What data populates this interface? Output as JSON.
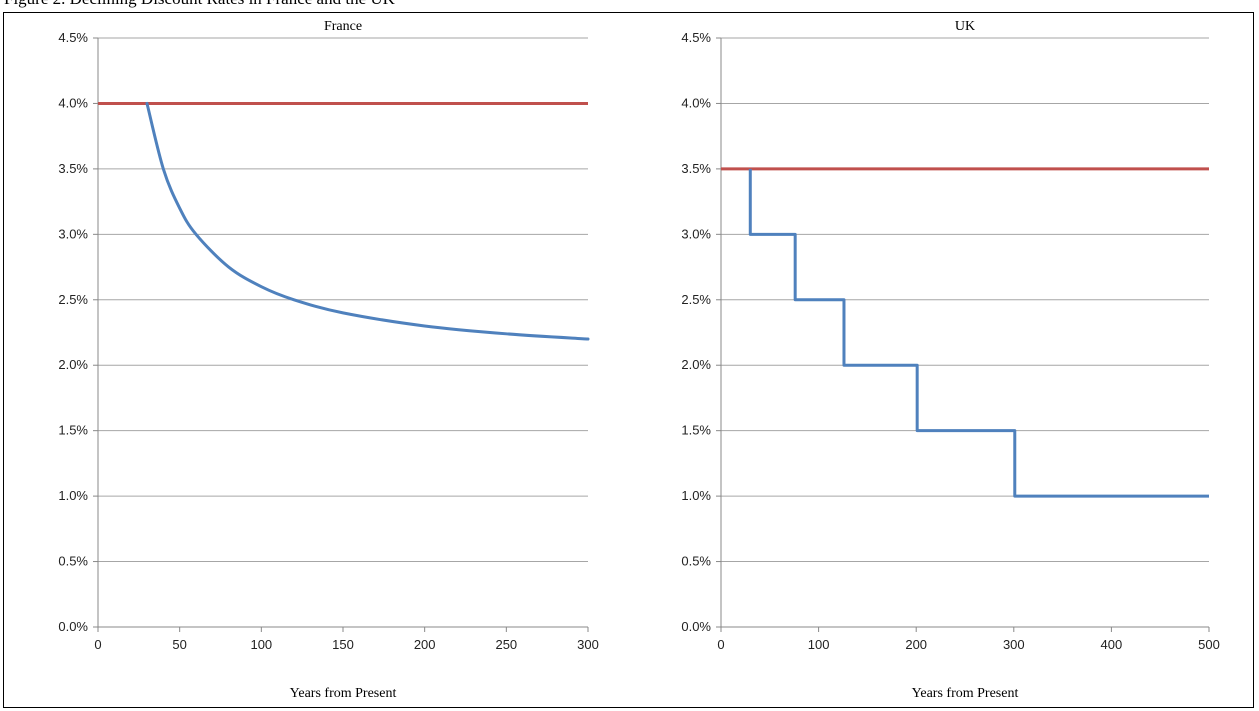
{
  "header": {
    "caption": "Figure 2. Declining Discount Rates in France and the UK"
  },
  "chart_data": [
    {
      "type": "line",
      "title": "France",
      "xlabel": "Years from Present",
      "ylabel": "",
      "xlim": [
        0,
        300
      ],
      "ylim": [
        0,
        4.5
      ],
      "x_ticks": [
        0,
        50,
        100,
        150,
        200,
        250,
        300
      ],
      "x_tick_labels": [
        "0",
        "50",
        "100",
        "150",
        "200",
        "250",
        "300"
      ],
      "y_ticks": [
        0,
        0.5,
        1,
        1.5,
        2,
        2.5,
        3,
        3.5,
        4,
        4.5
      ],
      "y_tick_labels": [
        "0.0%",
        "0.5%",
        "1.0%",
        "1.5%",
        "2.0%",
        "2.5%",
        "3.0%",
        "3.5%",
        "4.0%",
        "4.5%"
      ],
      "grid": true,
      "series": [
        {
          "color": "#c0504d",
          "x": [
            0,
            300
          ],
          "y": [
            4.0,
            4.0
          ]
        },
        {
          "color": "#4f81bd",
          "x": [
            30,
            40,
            50,
            60,
            80,
            100,
            120,
            150,
            200,
            250,
            300
          ],
          "y": [
            4.0,
            3.5,
            3.2,
            3.0,
            2.75,
            2.6,
            2.5,
            2.4,
            2.3,
            2.24,
            2.2
          ]
        }
      ]
    },
    {
      "type": "line",
      "title": "UK",
      "xlabel": "Years from Present",
      "ylabel": "",
      "xlim": [
        0,
        500
      ],
      "ylim": [
        0,
        4.5
      ],
      "x_ticks": [
        0,
        100,
        200,
        300,
        400,
        500
      ],
      "x_tick_labels": [
        "0",
        "100",
        "200",
        "300",
        "400",
        "500"
      ],
      "y_ticks": [
        0,
        0.5,
        1,
        1.5,
        2,
        2.5,
        3,
        3.5,
        4,
        4.5
      ],
      "y_tick_labels": [
        "0.0%",
        "0.5%",
        "1.0%",
        "1.5%",
        "2.0%",
        "2.5%",
        "3.0%",
        "3.5%",
        "4.0%",
        "4.5%"
      ],
      "grid": true,
      "series": [
        {
          "color": "#c0504d",
          "x": [
            0,
            500
          ],
          "y": [
            3.5,
            3.5
          ]
        },
        {
          "color": "#4f81bd",
          "x": [
            30,
            30,
            76,
            76,
            126,
            126,
            201,
            201,
            301,
            301,
            500
          ],
          "y": [
            3.5,
            3.0,
            3.0,
            2.5,
            2.5,
            2.0,
            2.0,
            1.5,
            1.5,
            1.0,
            1.0
          ]
        }
      ]
    }
  ]
}
